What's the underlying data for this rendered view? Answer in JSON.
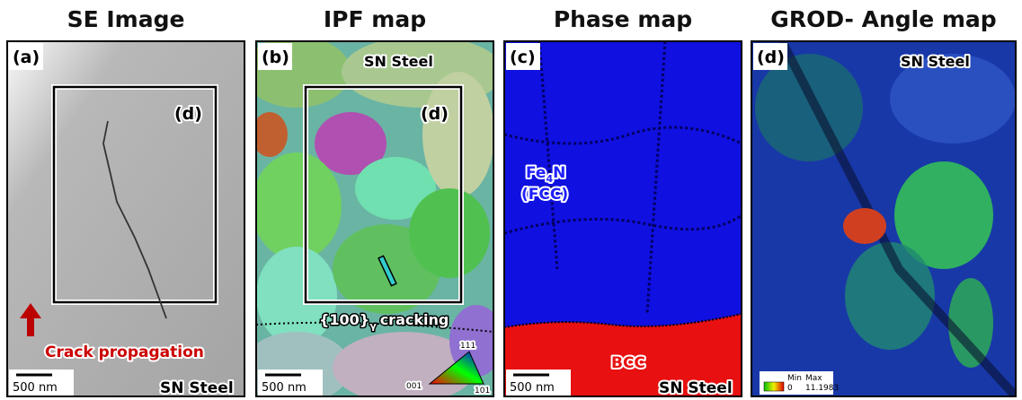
{
  "panels": [
    {
      "title": "SE Image",
      "label": "(a)",
      "inset_label": "(d)",
      "annotation": "Crack propagation",
      "scale_bar": "500 nm",
      "sample": "SN Steel"
    },
    {
      "title": "IPF map",
      "label": "(b)",
      "inset_label": "(d)",
      "sample": "SN Steel",
      "annotation": {
        "plane": "{100}",
        "subscript": "γ",
        "text": "cracking"
      },
      "scale_bar": "500 nm",
      "legend": {
        "corner_001": "001",
        "corner_101": "101",
        "corner_111": "111"
      }
    },
    {
      "title": "Phase map",
      "label": "(c)",
      "phase_fcc": {
        "element": "Fe",
        "subscript": "4",
        "suffix": "N",
        "structure": "(FCC)"
      },
      "phase_bcc": "BCC",
      "scale_bar": "500 nm",
      "sample": "SN Steel"
    },
    {
      "title": "GROD- Angle map",
      "label": "(d)",
      "sample": "SN Steel",
      "legend": {
        "min_label": "Min",
        "max_label": "Max",
        "min_value": "0",
        "max_value": "11.1983"
      }
    }
  ]
}
